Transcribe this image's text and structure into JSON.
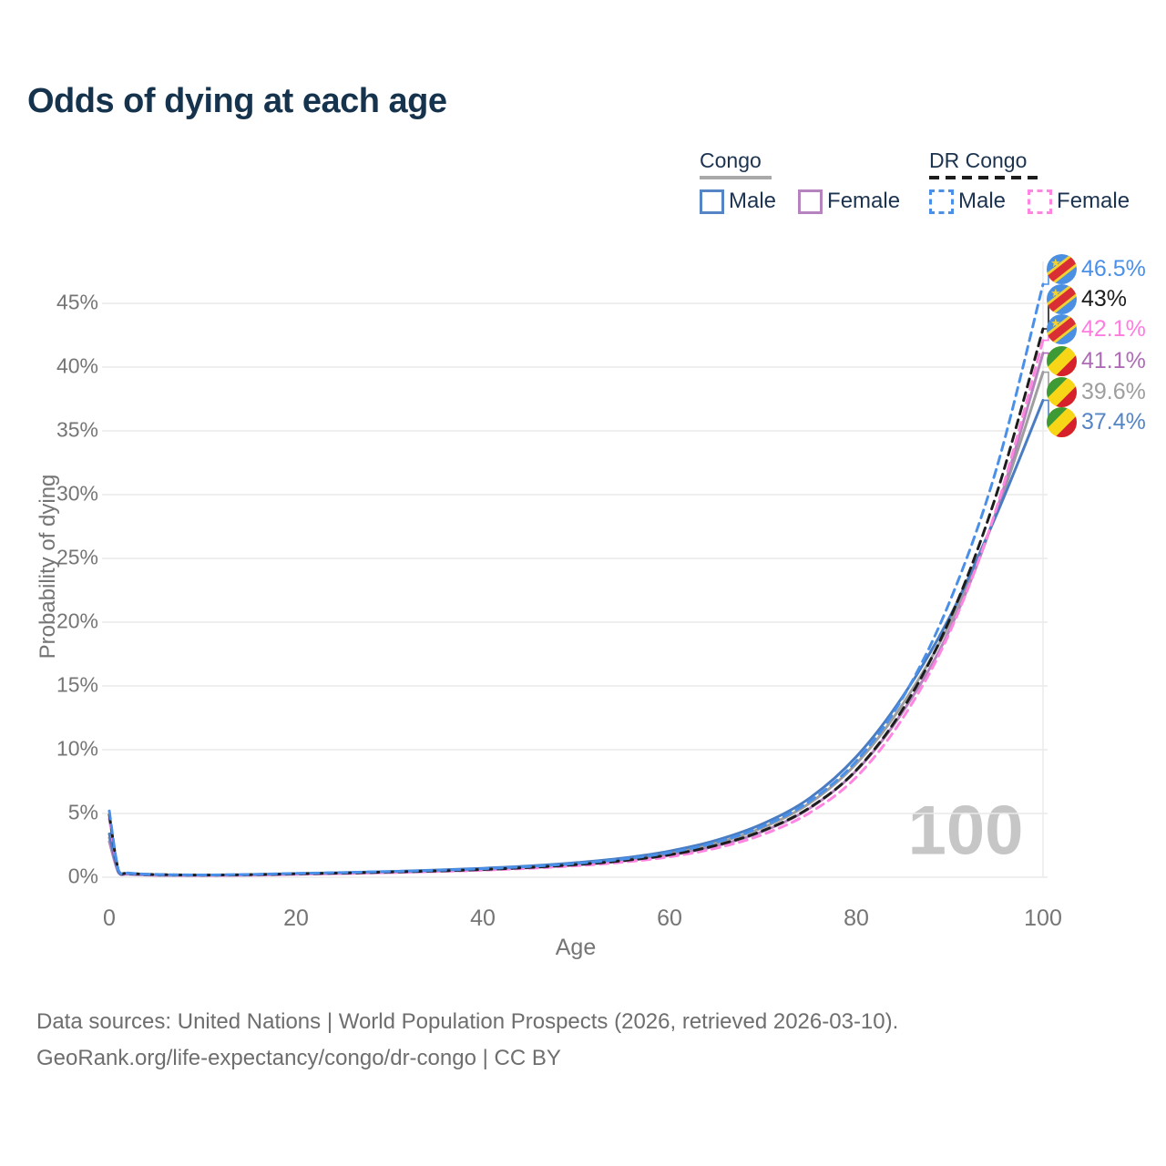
{
  "title": "Odds of dying at each age",
  "legend": {
    "groups": [
      {
        "label": "Congo",
        "line_style": "solid",
        "rule_color": "#a9a9a9",
        "items": [
          {
            "label": "Male",
            "color": "#5585c5"
          },
          {
            "label": "Female",
            "color": "#b583bd"
          }
        ]
      },
      {
        "label": "DR Congo",
        "line_style": "dashed",
        "rule_color": "#1d1d1d",
        "items": [
          {
            "label": "Male",
            "color": "#4a90e8"
          },
          {
            "label": "Female",
            "color": "#ff85e0"
          }
        ]
      }
    ]
  },
  "watermark": "100",
  "footer": {
    "line1": "Data sources: United Nations | World Population Prospects (2026, retrieved 2026-03-10).",
    "line2": "GeoRank.org/life-expectancy/congo/dr-congo | CC BY"
  },
  "end_labels": [
    {
      "text": "46.5%",
      "color": "#4a90e8",
      "flag": "drcongo-flag-icon",
      "value_pct": 46.5
    },
    {
      "text": "43%",
      "color": "#1d1d1d",
      "flag": "drcongo-flag-icon",
      "value_pct": 43.0
    },
    {
      "text": "42.1%",
      "color": "#ff7ce0",
      "flag": "drcongo-flag-icon",
      "value_pct": 42.1
    },
    {
      "text": "41.1%",
      "color": "#ad6cb5",
      "flag": "congo-flag-icon",
      "value_pct": 41.1
    },
    {
      "text": "39.6%",
      "color": "#9e9e9e",
      "flag": "congo-flag-icon",
      "value_pct": 39.6
    },
    {
      "text": "37.4%",
      "color": "#5585c5",
      "flag": "congo-flag-icon",
      "value_pct": 37.4
    }
  ],
  "chart_data": {
    "type": "line",
    "title": "Odds of dying at each age",
    "xlabel": "Age",
    "ylabel": "Probability of dying",
    "xlim": [
      0,
      100
    ],
    "ylim_pct": [
      0,
      47
    ],
    "x_ticks": [
      0,
      20,
      40,
      60,
      80,
      100
    ],
    "y_ticks": [
      {
        "value_pct": 0,
        "label": "0%"
      },
      {
        "value_pct": 5,
        "label": "5%"
      },
      {
        "value_pct": 10,
        "label": "10%"
      },
      {
        "value_pct": 15,
        "label": "15%"
      },
      {
        "value_pct": 20,
        "label": "20%"
      },
      {
        "value_pct": 25,
        "label": "25%"
      },
      {
        "value_pct": 30,
        "label": "30%"
      },
      {
        "value_pct": 35,
        "label": "35%"
      },
      {
        "value_pct": 40,
        "label": "40%"
      },
      {
        "value_pct": 45,
        "label": "45%"
      }
    ],
    "grid": "horizontal",
    "legend_position": "top-right",
    "ages": [
      0,
      1,
      2,
      5,
      10,
      15,
      20,
      25,
      30,
      35,
      40,
      45,
      50,
      55,
      60,
      65,
      70,
      75,
      80,
      85,
      90,
      95,
      100
    ],
    "series": [
      {
        "name": "Congo",
        "color": "#9e9e9e",
        "dash": "solid",
        "end_label": "39.6%",
        "values_pct": [
          3.1,
          0.37,
          0.25,
          0.17,
          0.14,
          0.18,
          0.26,
          0.33,
          0.41,
          0.51,
          0.64,
          0.81,
          1.05,
          1.38,
          1.88,
          2.67,
          3.9,
          5.8,
          8.9,
          13.6,
          19.9,
          28.6,
          39.6
        ]
      },
      {
        "name": "Congo Female",
        "color": "#b583bd",
        "dash": "solid",
        "end_label": "41.1%",
        "values_pct": [
          2.8,
          0.34,
          0.23,
          0.15,
          0.13,
          0.16,
          0.23,
          0.29,
          0.37,
          0.46,
          0.58,
          0.74,
          0.96,
          1.27,
          1.72,
          2.45,
          3.6,
          5.4,
          8.35,
          13.0,
          19.4,
          28.7,
          41.1
        ]
      },
      {
        "name": "Congo Male",
        "color": "#4a7cc2",
        "dash": "solid",
        "end_label": "37.4%",
        "values_pct": [
          3.4,
          0.4,
          0.27,
          0.18,
          0.16,
          0.2,
          0.29,
          0.36,
          0.45,
          0.56,
          0.7,
          0.88,
          1.14,
          1.5,
          2.05,
          2.9,
          4.2,
          6.2,
          9.45,
          14.2,
          20.4,
          28.4,
          37.4
        ]
      },
      {
        "name": "DR Congo Female",
        "color": "#ff85e0",
        "dash": "dashed",
        "end_label": "42.1%",
        "values_pct": [
          4.6,
          0.45,
          0.29,
          0.19,
          0.15,
          0.18,
          0.24,
          0.3,
          0.37,
          0.45,
          0.55,
          0.7,
          0.9,
          1.18,
          1.6,
          2.28,
          3.35,
          5.05,
          7.85,
          12.5,
          19.2,
          28.9,
          42.1
        ]
      },
      {
        "name": "DR Congo",
        "color": "#1d1d1d",
        "dash": "dashed",
        "end_label": "43%",
        "values_pct": [
          4.9,
          0.48,
          0.31,
          0.21,
          0.17,
          0.2,
          0.27,
          0.33,
          0.41,
          0.49,
          0.61,
          0.77,
          0.99,
          1.3,
          1.76,
          2.5,
          3.65,
          5.45,
          8.4,
          13.2,
          20.2,
          30.0,
          43.0
        ]
      },
      {
        "name": "DR Congo Male",
        "color": "#4a90e8",
        "dash": "dashed",
        "end_label": "46.5%",
        "values_pct": [
          5.2,
          0.5,
          0.33,
          0.22,
          0.18,
          0.22,
          0.3,
          0.37,
          0.45,
          0.54,
          0.67,
          0.84,
          1.08,
          1.42,
          1.93,
          2.74,
          4.0,
          5.95,
          9.1,
          14.1,
          21.6,
          32.0,
          46.5
        ]
      }
    ]
  }
}
